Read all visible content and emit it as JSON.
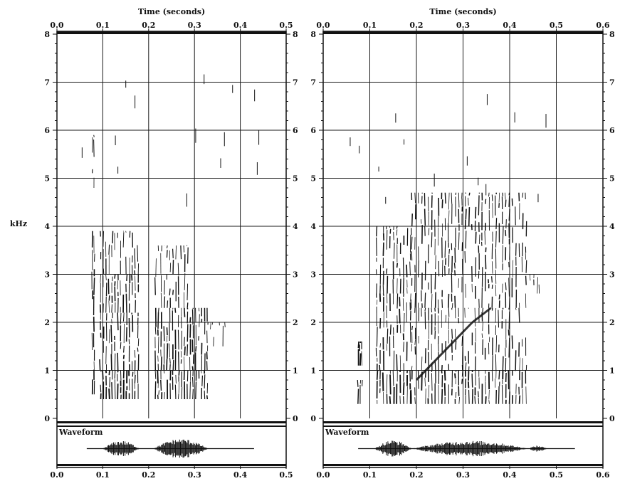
{
  "chart_data": [
    {
      "type": "spectrogram",
      "xlabel": "Time (seconds)",
      "ylabel": "kHz",
      "xlim": [
        0,
        0.5
      ],
      "ylim": [
        0,
        8
      ],
      "x_ticks": [
        "0.0",
        "0.1",
        "0.2",
        "0.3",
        "0.4",
        "0.5"
      ],
      "x_ticks_bottom": [
        "0.0",
        "0.1",
        "0.2",
        "0.3",
        "0.4",
        "0.5"
      ],
      "y_ticks": [
        "0",
        "1",
        "2",
        "3",
        "4",
        "5",
        "6",
        "7",
        "8"
      ],
      "grid": true,
      "waveform_label": "Waveform",
      "pitch_periods": {
        "voiced_segments": [
          [
            0.095,
            0.18
          ],
          [
            0.215,
            0.33
          ]
        ],
        "period_s": 0.0063
      },
      "energy_regions": [
        {
          "t0": 0.077,
          "t1": 0.082,
          "f0": 0.5,
          "f1": 3.9,
          "d": 0.7
        },
        {
          "t0": 0.077,
          "t1": 0.081,
          "f0": 4.8,
          "f1": 5.9,
          "d": 0.5
        },
        {
          "t0": 0.095,
          "t1": 0.18,
          "f0": 0.4,
          "f1": 1.0,
          "d": 0.95
        },
        {
          "t0": 0.095,
          "t1": 0.18,
          "f0": 1.0,
          "f1": 2.2,
          "d": 0.7
        },
        {
          "t0": 0.095,
          "t1": 0.18,
          "f0": 2.2,
          "f1": 3.0,
          "d": 0.75
        },
        {
          "t0": 0.095,
          "t1": 0.18,
          "f0": 3.0,
          "f1": 3.9,
          "d": 0.55
        },
        {
          "t0": 0.215,
          "t1": 0.33,
          "f0": 0.4,
          "f1": 1.0,
          "d": 0.9
        },
        {
          "t0": 0.215,
          "t1": 0.33,
          "f0": 1.0,
          "f1": 2.3,
          "d": 0.75
        },
        {
          "t0": 0.215,
          "t1": 0.29,
          "f0": 2.3,
          "f1": 3.6,
          "d": 0.55
        },
        {
          "t0": 0.33,
          "t1": 0.37,
          "f0": 1.5,
          "f1": 2.0,
          "d": 0.3
        }
      ],
      "waveform": {
        "t_start": 0.065,
        "t_end": 0.43,
        "bursts": [
          [
            0.1,
            0.18,
            0.8
          ],
          [
            0.21,
            0.33,
            1.0
          ]
        ]
      }
    },
    {
      "type": "spectrogram",
      "xlabel": "Time (seconds)",
      "ylabel": "kHz",
      "xlim": [
        0,
        0.6
      ],
      "ylim": [
        0,
        8
      ],
      "x_ticks": [
        "0.0",
        "0.1",
        "0.2",
        "0.3",
        "0.4",
        "0.5",
        "0.6"
      ],
      "x_ticks_bottom": [
        "0.0",
        "0.1",
        "0.2",
        "0.3",
        "0.4",
        "0.5",
        "0.6"
      ],
      "y_ticks": [
        "0",
        "1",
        "2",
        "3",
        "4",
        "5",
        "6",
        "7",
        "8"
      ],
      "grid": true,
      "waveform_label": "Waveform",
      "pitch_periods": {
        "voiced_segments": [
          [
            0.115,
            0.44
          ]
        ],
        "period_s": 0.0072
      },
      "energy_regions": [
        {
          "t0": 0.075,
          "t1": 0.085,
          "f0": 1.1,
          "f1": 1.6,
          "d": 0.9
        },
        {
          "t0": 0.075,
          "t1": 0.085,
          "f0": 0.3,
          "f1": 0.8,
          "d": 0.6
        },
        {
          "t0": 0.115,
          "t1": 0.19,
          "f0": 0.3,
          "f1": 1.0,
          "d": 0.9
        },
        {
          "t0": 0.115,
          "t1": 0.19,
          "f0": 1.0,
          "f1": 2.6,
          "d": 0.8
        },
        {
          "t0": 0.115,
          "t1": 0.19,
          "f0": 2.6,
          "f1": 4.0,
          "d": 0.7
        },
        {
          "t0": 0.19,
          "t1": 0.44,
          "f0": 0.3,
          "f1": 1.0,
          "d": 0.9
        },
        {
          "t0": 0.19,
          "t1": 0.44,
          "f0": 1.0,
          "f1": 2.3,
          "d": 0.6
        },
        {
          "t0": 0.19,
          "t1": 0.44,
          "f0": 2.3,
          "f1": 4.7,
          "d": 0.65
        },
        {
          "t0": 0.44,
          "t1": 0.47,
          "f0": 2.6,
          "f1": 3.0,
          "d": 0.3
        }
      ],
      "formant_track": [
        [
          0.2,
          0.8
        ],
        [
          0.24,
          1.2
        ],
        [
          0.28,
          1.6
        ],
        [
          0.32,
          2.0
        ],
        [
          0.36,
          2.3
        ]
      ],
      "waveform": {
        "t_start": 0.075,
        "t_end": 0.54,
        "bursts": [
          [
            0.11,
            0.19,
            0.85
          ],
          [
            0.19,
            0.44,
            0.8
          ],
          [
            0.44,
            0.48,
            0.3
          ]
        ]
      }
    }
  ],
  "colors": {
    "ink": "#111111",
    "grid": "#1a1a1a",
    "background": "#ffffff"
  }
}
